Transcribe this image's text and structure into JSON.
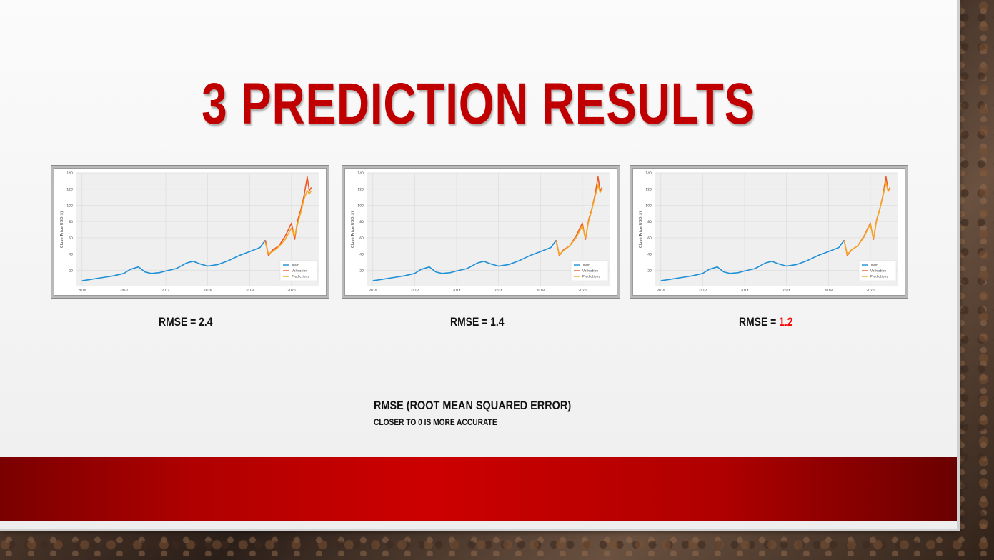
{
  "slide": {
    "title": "3 PREDICTION RESULTS",
    "rmse_items": [
      {
        "prefix": "RMSE = ",
        "value": "2.4",
        "highlight": false
      },
      {
        "prefix": "RMSE = ",
        "value": "1.4",
        "highlight": false
      },
      {
        "prefix": "RMSE = ",
        "value": "1.2",
        "highlight": true
      }
    ],
    "note_title": "RMSE (ROOT MEAN SQUARED ERROR)",
    "note_subtitle": "CLOSER TO 0 IS MORE ACCURATE",
    "colors": {
      "title": "#c00000",
      "highlight": "#ff0000",
      "band": "#cc0000"
    }
  },
  "chart_data": [
    {
      "type": "line",
      "ylabel": "Close Price USD($)",
      "ylim": [
        0,
        140
      ],
      "yticks": [
        20,
        40,
        60,
        80,
        100,
        120,
        140
      ],
      "xticks": [
        "2010",
        "2012",
        "2014",
        "2016",
        "2018",
        "2020"
      ],
      "series": [
        {
          "name": "Train",
          "color": "#1f8fd6",
          "x": [
            2010.0,
            2010.5,
            2011.0,
            2011.5,
            2012.0,
            2012.3,
            2012.7,
            2013.0,
            2013.3,
            2013.7,
            2014.0,
            2014.5,
            2015.0,
            2015.3,
            2015.6,
            2016.0,
            2016.5,
            2017.0,
            2017.5,
            2018.0,
            2018.5,
            2018.75
          ],
          "y": [
            7,
            9,
            11,
            13,
            16,
            21,
            24,
            18,
            16,
            17,
            19,
            22,
            29,
            31,
            28,
            25,
            27,
            32,
            38,
            43,
            48,
            57
          ]
        },
        {
          "name": "Validation",
          "color": "#ee5a24",
          "x": [
            2018.75,
            2018.9,
            2019.1,
            2019.4,
            2019.7,
            2020.0,
            2020.15,
            2020.3,
            2020.45,
            2020.6,
            2020.75,
            2020.85,
            2020.95
          ],
          "y": [
            57,
            38,
            45,
            50,
            62,
            78,
            58,
            82,
            95,
            112,
            135,
            118,
            122
          ]
        },
        {
          "name": "Predictions",
          "color": "#f5a623",
          "x": [
            2018.75,
            2018.9,
            2019.1,
            2019.4,
            2019.7,
            2020.0,
            2020.15,
            2020.3,
            2020.45,
            2020.6,
            2020.75,
            2020.85,
            2020.95
          ],
          "y": [
            54,
            40,
            43,
            49,
            58,
            72,
            62,
            78,
            92,
            108,
            118,
            114,
            118
          ]
        }
      ]
    },
    {
      "type": "line",
      "ylabel": "Close Price USD($)",
      "ylim": [
        0,
        140
      ],
      "yticks": [
        20,
        40,
        60,
        80,
        100,
        120,
        140
      ],
      "xticks": [
        "2010",
        "2012",
        "2014",
        "2016",
        "2018",
        "2020"
      ],
      "series": [
        {
          "name": "Train",
          "color": "#1f8fd6",
          "x": [
            2010.0,
            2010.5,
            2011.0,
            2011.5,
            2012.0,
            2012.3,
            2012.7,
            2013.0,
            2013.3,
            2013.7,
            2014.0,
            2014.5,
            2015.0,
            2015.3,
            2015.6,
            2016.0,
            2016.5,
            2017.0,
            2017.5,
            2018.0,
            2018.5,
            2018.75
          ],
          "y": [
            7,
            9,
            11,
            13,
            16,
            21,
            24,
            18,
            16,
            17,
            19,
            22,
            29,
            31,
            28,
            25,
            27,
            32,
            38,
            43,
            48,
            57
          ]
        },
        {
          "name": "Validation",
          "color": "#ee5a24",
          "x": [
            2018.75,
            2018.9,
            2019.1,
            2019.4,
            2019.7,
            2020.0,
            2020.15,
            2020.3,
            2020.45,
            2020.6,
            2020.75,
            2020.85,
            2020.95
          ],
          "y": [
            57,
            38,
            45,
            50,
            62,
            78,
            58,
            82,
            95,
            112,
            135,
            118,
            122
          ]
        },
        {
          "name": "Predictions",
          "color": "#f5a623",
          "x": [
            2018.75,
            2018.9,
            2019.1,
            2019.4,
            2019.7,
            2020.0,
            2020.15,
            2020.3,
            2020.45,
            2020.6,
            2020.75,
            2020.85,
            2020.95
          ],
          "y": [
            55,
            39,
            44,
            50,
            60,
            75,
            60,
            80,
            94,
            110,
            125,
            116,
            120
          ]
        }
      ]
    },
    {
      "type": "line",
      "ylabel": "Close Price USD($)",
      "ylim": [
        0,
        140
      ],
      "yticks": [
        20,
        40,
        60,
        80,
        100,
        120,
        140
      ],
      "xticks": [
        "2010",
        "2012",
        "2014",
        "2016",
        "2018",
        "2020"
      ],
      "series": [
        {
          "name": "Train",
          "color": "#1f8fd6",
          "x": [
            2010.0,
            2010.5,
            2011.0,
            2011.5,
            2012.0,
            2012.3,
            2012.7,
            2013.0,
            2013.3,
            2013.7,
            2014.0,
            2014.5,
            2015.0,
            2015.3,
            2015.6,
            2016.0,
            2016.5,
            2017.0,
            2017.5,
            2018.0,
            2018.5,
            2018.75
          ],
          "y": [
            7,
            9,
            11,
            13,
            16,
            21,
            24,
            18,
            16,
            17,
            19,
            22,
            29,
            31,
            28,
            25,
            27,
            32,
            38,
            43,
            48,
            57
          ]
        },
        {
          "name": "Validation",
          "color": "#ee5a24",
          "x": [
            2018.75,
            2018.9,
            2019.1,
            2019.4,
            2019.7,
            2020.0,
            2020.15,
            2020.3,
            2020.45,
            2020.6,
            2020.75,
            2020.85,
            2020.95
          ],
          "y": [
            57,
            38,
            45,
            50,
            62,
            78,
            58,
            82,
            95,
            112,
            135,
            118,
            122
          ]
        },
        {
          "name": "Predictions",
          "color": "#f5a623",
          "x": [
            2018.75,
            2018.9,
            2019.1,
            2019.4,
            2019.7,
            2020.0,
            2020.15,
            2020.3,
            2020.45,
            2020.6,
            2020.75,
            2020.85,
            2020.95
          ],
          "y": [
            56,
            39,
            45,
            50,
            61,
            77,
            59,
            81,
            95,
            111,
            128,
            117,
            121
          ]
        }
      ]
    }
  ]
}
